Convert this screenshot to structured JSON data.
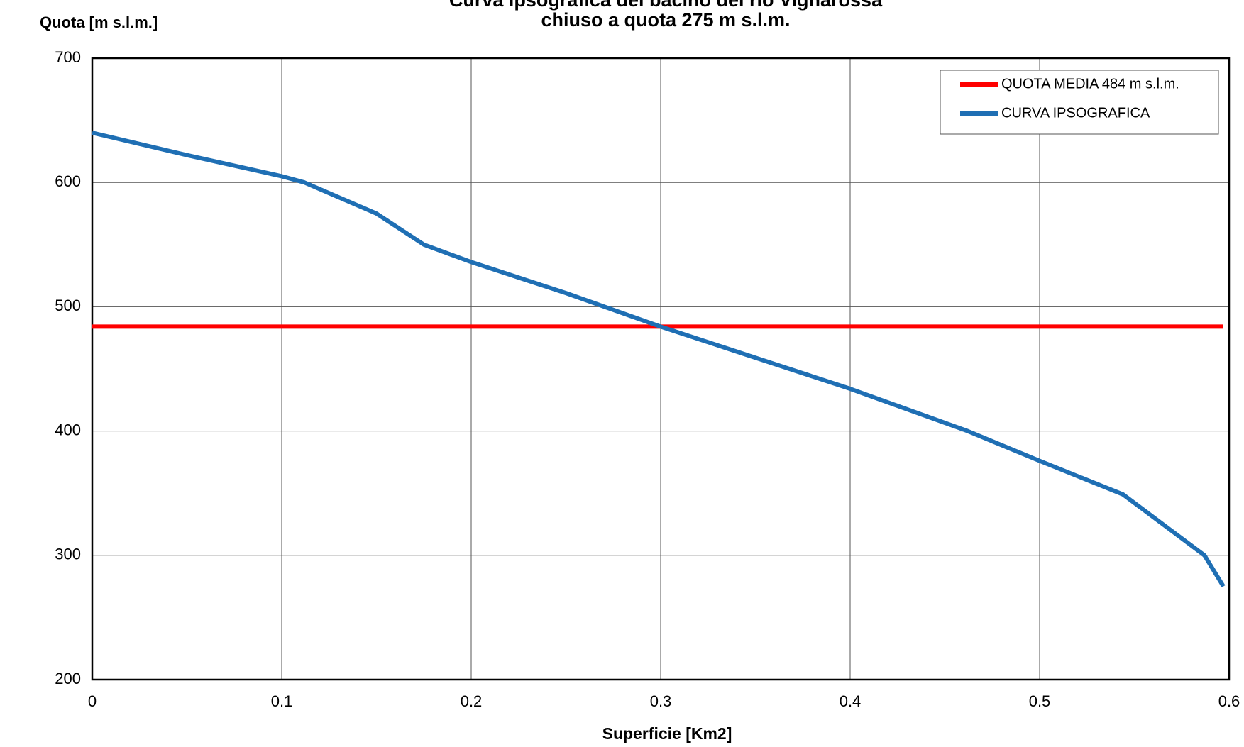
{
  "chart_data": {
    "type": "line",
    "title": "Curva ipsografica del bacino del rio Vignarossa",
    "subtitle": "chiuso a quota 275 m s.l.m.",
    "ylabel": "Quota [m s.l.m.]",
    "xlabel": "Superficie [Km2]",
    "xlim": [
      0,
      0.6
    ],
    "xticks": [
      0,
      0.1,
      0.2,
      0.3,
      0.4,
      0.5,
      0.6
    ],
    "ylim": [
      200,
      700
    ],
    "yticks": [
      200,
      300,
      400,
      500,
      600,
      700
    ],
    "grid": true,
    "legend": "upper right",
    "series": [
      {
        "name": "QUOTA MEDIA 484 m s.l.m.",
        "color": "#ff0000",
        "x": [
          0,
          0.597
        ],
        "values": [
          484,
          484
        ]
      },
      {
        "name": "CURVA IPSOGRAFICA",
        "color": "#1f6fb4",
        "x": [
          0,
          0.05,
          0.1,
          0.112,
          0.15,
          0.175,
          0.2,
          0.25,
          0.3,
          0.35,
          0.4,
          0.462,
          0.5,
          0.544,
          0.587,
          0.597
        ],
        "values": [
          640,
          622,
          605,
          600,
          575,
          550,
          536,
          511,
          484,
          459,
          434,
          400,
          376,
          349,
          300,
          275
        ]
      }
    ]
  }
}
